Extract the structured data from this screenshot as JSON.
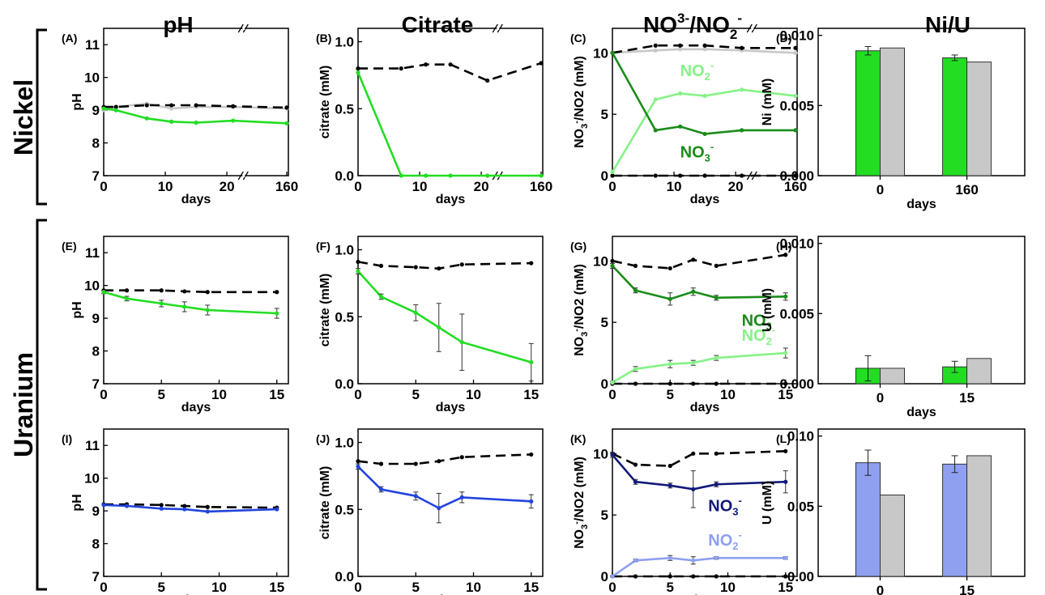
{
  "colors": {
    "green": "#22dd22",
    "dark_green": "#1a8c1a",
    "light_green": "#86f286",
    "blue": "#2244dd",
    "navy": "#12197a",
    "light_blue": "#8fa0f0",
    "grey": "#c8c8c8",
    "black": "#000000"
  },
  "column_titles": [
    "pH",
    "Citrate",
    "NO3-/NO2-",
    "Ni/U"
  ],
  "row_titles": [
    "Nickel",
    "Uranium"
  ],
  "chart_data": [
    {
      "panel": "(A)",
      "type": "line",
      "xlabel": "days",
      "ylabel": "pH",
      "xticks": [
        "0",
        "10",
        "20",
        "160"
      ],
      "xbreak": true,
      "ylim": [
        7,
        11.5
      ],
      "yticks": [
        "7",
        "8",
        "9",
        "10",
        "11"
      ],
      "series": [
        {
          "style": "grey",
          "x": [
            0,
            2,
            7,
            11,
            15,
            21,
            160
          ],
          "y": [
            9.0,
            9.1,
            9.2,
            9.05,
            9.1,
            9.1,
            9.05
          ]
        },
        {
          "style": "black-dashed",
          "x": [
            0,
            2,
            7,
            11,
            15,
            21,
            160
          ],
          "y": [
            9.1,
            9.1,
            9.15,
            9.15,
            9.15,
            9.12,
            9.08
          ]
        },
        {
          "style": "green",
          "x": [
            0,
            2,
            7,
            11,
            15,
            21,
            160
          ],
          "y": [
            9.05,
            9.0,
            8.75,
            8.65,
            8.62,
            8.68,
            8.6
          ]
        }
      ]
    },
    {
      "panel": "(B)",
      "type": "line",
      "xlabel": "days",
      "ylabel": "citrate (mM)",
      "xticks": [
        "0",
        "10",
        "20",
        "160"
      ],
      "xbreak": true,
      "ylim": [
        0,
        1.1
      ],
      "yticks": [
        "0.0",
        "0.5",
        "1.0"
      ],
      "series": [
        {
          "style": "black-dashed",
          "x": [
            0,
            7,
            11,
            15,
            21,
            160
          ],
          "y": [
            0.8,
            0.8,
            0.83,
            0.83,
            0.71,
            0.84
          ]
        },
        {
          "style": "green",
          "x": [
            0,
            7,
            11,
            15,
            21,
            160
          ],
          "y": [
            0.77,
            0.0,
            0.0,
            0.0,
            0.0,
            0.0
          ]
        }
      ]
    },
    {
      "panel": "(C)",
      "type": "line",
      "xlabel": "days",
      "ylabel": "NO3-/NO2 (mM)",
      "xticks": [
        "0",
        "10",
        "20",
        "160"
      ],
      "xbreak": true,
      "ylim": [
        0,
        12
      ],
      "yticks": [
        "0",
        "5",
        "10"
      ],
      "series": [
        {
          "style": "grey",
          "x": [
            0,
            7,
            11,
            15,
            21,
            160
          ],
          "y": [
            10.0,
            10.2,
            10.3,
            10.3,
            10.2,
            10.0
          ]
        },
        {
          "style": "black-dashed",
          "x": [
            0,
            7,
            11,
            15,
            21,
            160
          ],
          "y": [
            10.0,
            10.6,
            10.6,
            10.6,
            10.4,
            10.4
          ]
        },
        {
          "style": "black-dashed",
          "x": [
            0,
            7,
            11,
            15,
            21,
            160
          ],
          "y": [
            0.0,
            0.0,
            0.0,
            0.0,
            0.0,
            0.0
          ]
        },
        {
          "name": "NO2-",
          "style": "light-green",
          "x": [
            0,
            7,
            11,
            15,
            21,
            160
          ],
          "y": [
            0.3,
            6.2,
            6.7,
            6.5,
            7.0,
            6.5
          ]
        },
        {
          "name": "NO3-",
          "style": "dark-green",
          "x": [
            0,
            7,
            11,
            15,
            21,
            160
          ],
          "y": [
            10.0,
            3.7,
            4.0,
            3.4,
            3.7,
            3.7
          ]
        }
      ],
      "labels": [
        {
          "text": "NO2",
          "sup": "-",
          "color": "light_green",
          "at": [
            11,
            8.1
          ]
        },
        {
          "text": "NO3",
          "sup": "-",
          "color": "dark_green",
          "at": [
            11,
            1.5
          ]
        }
      ]
    },
    {
      "panel": "(D)",
      "type": "bar",
      "xlabel": "days",
      "ylabel": "Ni (mM)",
      "categories": [
        "0",
        "160"
      ],
      "ylim": [
        0,
        0.0105
      ],
      "yticks": [
        "0.000",
        "0.005",
        "0.010"
      ],
      "series": [
        {
          "style": "green",
          "values": [
            0.0089,
            0.0084
          ],
          "errors": [
            0.0003,
            0.0002
          ]
        },
        {
          "style": "grey",
          "values": [
            0.0091,
            0.0081
          ]
        }
      ]
    },
    {
      "panel": "(E)",
      "type": "line",
      "xlabel": "days",
      "ylabel": "pH",
      "xticks": [
        "0",
        "5",
        "10",
        "15"
      ],
      "xlim": [
        0,
        16
      ],
      "ylim": [
        7,
        11.5
      ],
      "yticks": [
        "7",
        "8",
        "9",
        "10",
        "11"
      ],
      "series": [
        {
          "style": "black-dashed",
          "x": [
            0,
            2,
            5,
            7,
            9,
            15
          ],
          "y": [
            9.85,
            9.85,
            9.85,
            9.82,
            9.8,
            9.8
          ]
        },
        {
          "style": "green",
          "x": [
            0,
            2,
            5,
            7,
            9,
            15
          ],
          "y": [
            9.8,
            9.6,
            9.45,
            9.35,
            9.25,
            9.15
          ],
          "errors": [
            0.05,
            0.07,
            0.1,
            0.15,
            0.15,
            0.15
          ]
        }
      ]
    },
    {
      "panel": "(F)",
      "type": "line",
      "xlabel": "days",
      "ylabel": "citrate (mM)",
      "xticks": [
        "0",
        "5",
        "10",
        "15"
      ],
      "xlim": [
        0,
        16
      ],
      "ylim": [
        0,
        1.1
      ],
      "yticks": [
        "0.0",
        "0.5",
        "1.0"
      ],
      "series": [
        {
          "style": "black-dashed",
          "x": [
            0,
            2,
            5,
            7,
            9,
            15
          ],
          "y": [
            0.91,
            0.88,
            0.87,
            0.86,
            0.89,
            0.9
          ]
        },
        {
          "style": "green",
          "x": [
            0,
            2,
            5,
            7,
            9,
            15
          ],
          "y": [
            0.84,
            0.65,
            0.53,
            0.42,
            0.31,
            0.16
          ],
          "errors": [
            0.02,
            0.02,
            0.06,
            0.18,
            0.21,
            0.14
          ]
        }
      ]
    },
    {
      "panel": "(G)",
      "type": "line",
      "xlabel": "days",
      "ylabel": "NO3-/NO2 (mM)",
      "xticks": [
        "0",
        "5",
        "10",
        "15"
      ],
      "xlim": [
        0,
        16
      ],
      "ylim": [
        0,
        12
      ],
      "yticks": [
        "0",
        "5",
        "10"
      ],
      "series": [
        {
          "style": "black-dashed",
          "x": [
            0,
            2,
            5,
            7,
            9,
            15
          ],
          "y": [
            10.0,
            9.6,
            9.4,
            10.1,
            9.6,
            10.5
          ]
        },
        {
          "style": "black-dashed",
          "x": [
            0,
            2,
            5,
            7,
            9,
            15
          ],
          "y": [
            0.0,
            0.0,
            0.0,
            0.0,
            0.0,
            0.0
          ]
        },
        {
          "name": "NO3-",
          "style": "dark-green",
          "x": [
            0,
            2,
            5,
            7,
            9,
            15
          ],
          "y": [
            9.6,
            7.6,
            6.9,
            7.5,
            7.0,
            7.1
          ],
          "errors": [
            0.2,
            0.2,
            0.5,
            0.3,
            0.2,
            0.3
          ]
        },
        {
          "name": "NO2-",
          "style": "light-green",
          "x": [
            0,
            2,
            5,
            7,
            9,
            15
          ],
          "y": [
            0.1,
            1.2,
            1.6,
            1.7,
            2.1,
            2.5
          ],
          "errors": [
            0.1,
            0.2,
            0.3,
            0.2,
            0.2,
            0.4
          ]
        }
      ],
      "labels": [
        {
          "text": "NO3",
          "sup": "-",
          "color": "dark_green",
          "at": [
            11.2,
            4.7
          ]
        },
        {
          "text": "NO2",
          "sup": "-",
          "color": "light_green",
          "at": [
            11.2,
            3.5
          ]
        }
      ]
    },
    {
      "panel": "(H)",
      "type": "bar",
      "xlabel": "days",
      "ylabel": "U (mM)",
      "categories": [
        "0",
        "15"
      ],
      "ylim": [
        0,
        0.0105
      ],
      "yticks": [
        "0.000",
        "0.005",
        "0.010"
      ],
      "series": [
        {
          "style": "green",
          "values": [
            0.0011,
            0.0012
          ],
          "errors": [
            0.0009,
            0.0004
          ]
        },
        {
          "style": "grey",
          "values": [
            0.0011,
            0.0018
          ]
        }
      ]
    },
    {
      "panel": "(I)",
      "type": "line",
      "xlabel": "days",
      "ylabel": "pH",
      "xticks": [
        "0",
        "5",
        "10",
        "15"
      ],
      "xlim": [
        0,
        16
      ],
      "ylim": [
        7,
        11.5
      ],
      "yticks": [
        "7",
        "8",
        "9",
        "10",
        "11"
      ],
      "series": [
        {
          "style": "black-dashed",
          "x": [
            0,
            2,
            5,
            7,
            9,
            15
          ],
          "y": [
            9.2,
            9.2,
            9.18,
            9.15,
            9.12,
            9.1
          ]
        },
        {
          "style": "blue",
          "x": [
            0,
            2,
            5,
            7,
            9,
            15
          ],
          "y": [
            9.18,
            9.15,
            9.07,
            9.05,
            8.98,
            9.05
          ]
        }
      ]
    },
    {
      "panel": "(J)",
      "type": "line",
      "xlabel": "days",
      "ylabel": "citrate (mM)",
      "xticks": [
        "0",
        "5",
        "10",
        "15"
      ],
      "xlim": [
        0,
        16
      ],
      "ylim": [
        0,
        1.1
      ],
      "yticks": [
        "0.0",
        "0.5",
        "1.0"
      ],
      "series": [
        {
          "style": "black-dashed",
          "x": [
            0,
            2,
            5,
            7,
            9,
            15
          ],
          "y": [
            0.86,
            0.84,
            0.84,
            0.86,
            0.89,
            0.91
          ]
        },
        {
          "style": "blue",
          "x": [
            0,
            2,
            5,
            7,
            9,
            15
          ],
          "y": [
            0.82,
            0.65,
            0.6,
            0.51,
            0.59,
            0.56
          ],
          "errors": [
            0.02,
            0.02,
            0.03,
            0.11,
            0.04,
            0.05
          ]
        }
      ]
    },
    {
      "panel": "(K)",
      "type": "line",
      "xlabel": "days",
      "ylabel": "NO3-/NO2 (mM)",
      "xticks": [
        "0",
        "5",
        "10",
        "15"
      ],
      "xlim": [
        0,
        16
      ],
      "ylim": [
        0,
        12
      ],
      "yticks": [
        "0",
        "5",
        "10"
      ],
      "series": [
        {
          "style": "black-dashed",
          "x": [
            0,
            2,
            5,
            7,
            9,
            15
          ],
          "y": [
            10.0,
            9.1,
            9.0,
            10.0,
            10.0,
            10.2
          ]
        },
        {
          "style": "black-dashed",
          "x": [
            0,
            2,
            5,
            7,
            9,
            15
          ],
          "y": [
            0.0,
            0.0,
            0.0,
            0.0,
            0.0,
            0.0
          ]
        },
        {
          "name": "NO3-",
          "style": "navy",
          "x": [
            0,
            2,
            5,
            7,
            9,
            15
          ],
          "y": [
            9.9,
            7.7,
            7.4,
            7.1,
            7.5,
            7.7
          ],
          "errors": [
            0.2,
            0.2,
            0.2,
            1.5,
            0.2,
            0.9
          ]
        },
        {
          "name": "NO2-",
          "style": "light-blue",
          "x": [
            0,
            2,
            5,
            7,
            9,
            15
          ],
          "y": [
            0.0,
            1.3,
            1.5,
            1.3,
            1.5,
            1.5
          ],
          "errors": [
            0.05,
            0.1,
            0.2,
            0.3,
            0.1,
            0.1
          ]
        }
      ],
      "labels": [
        {
          "text": "NO3",
          "sup": "-",
          "color": "navy",
          "at": [
            8.3,
            5.3
          ]
        },
        {
          "text": "NO2",
          "sup": "-",
          "color": "light_blue",
          "at": [
            8.3,
            2.5
          ]
        }
      ]
    },
    {
      "panel": "(L)",
      "type": "bar",
      "xlabel": "days",
      "ylabel": "U (mM)",
      "categories": [
        "0",
        "15"
      ],
      "ylim": [
        0,
        0.105
      ],
      "yticks": [
        "0.00",
        "0.05",
        "0.10"
      ],
      "series": [
        {
          "style": "blue",
          "values": [
            0.081,
            0.08
          ],
          "errors": [
            0.009,
            0.006
          ]
        },
        {
          "style": "grey",
          "values": [
            0.058,
            0.086
          ]
        }
      ]
    }
  ]
}
